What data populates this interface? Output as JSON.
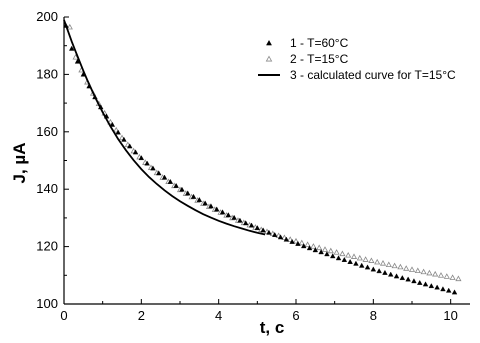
{
  "chart_data": {
    "type": "scatter",
    "title": "",
    "xlabel": "t, c",
    "ylabel": "J, µA",
    "xlim": [
      0,
      10.5
    ],
    "ylim": [
      100,
      200
    ],
    "x_ticks": [
      0,
      2,
      4,
      6,
      8,
      10
    ],
    "y_ticks": [
      100,
      120,
      140,
      160,
      180,
      200
    ],
    "grid": false,
    "legend_position": "top-right",
    "series": [
      {
        "name": "1 - T=60°C",
        "marker": "filled-triangle",
        "color": "#000000",
        "x": [
          0.05,
          0.2,
          0.35,
          0.5,
          0.65,
          0.8,
          0.95,
          1.1,
          1.25,
          1.4,
          1.55,
          1.7,
          1.85,
          2.0,
          2.15,
          2.3,
          2.45,
          2.6,
          2.75,
          2.9,
          3.05,
          3.2,
          3.35,
          3.5,
          3.65,
          3.8,
          3.95,
          4.1,
          4.25,
          4.4,
          4.55,
          4.7,
          4.85,
          5.0,
          5.15,
          5.3,
          5.45,
          5.6,
          5.75,
          5.9,
          6.05,
          6.2,
          6.35,
          6.5,
          6.65,
          6.8,
          6.95,
          7.1,
          7.25,
          7.4,
          7.55,
          7.7,
          7.85,
          8.0,
          8.15,
          8.3,
          8.45,
          8.6,
          8.75,
          8.9,
          9.05,
          9.2,
          9.35,
          9.5,
          9.65,
          9.8,
          9.95,
          10.1
        ],
        "y": [
          197.0,
          189.0,
          184.5,
          180.0,
          175.9,
          172.1,
          168.6,
          165.4,
          162.5,
          159.8,
          157.3,
          155.0,
          152.9,
          150.9,
          149.0,
          147.3,
          145.6,
          144.1,
          142.6,
          141.2,
          139.9,
          138.6,
          137.4,
          136.3,
          135.1,
          134.1,
          133.0,
          132.0,
          131.0,
          130.1,
          129.1,
          128.2,
          127.4,
          126.5,
          125.7,
          124.9,
          124.1,
          123.3,
          122.5,
          121.7,
          121.0,
          120.2,
          119.5,
          118.8,
          118.1,
          117.4,
          116.7,
          116.0,
          115.4,
          114.7,
          114.1,
          113.4,
          112.8,
          112.1,
          111.5,
          110.9,
          110.3,
          109.7,
          109.1,
          108.6,
          108.0,
          107.4,
          106.9,
          106.3,
          105.8,
          105.2,
          104.7,
          104.1
        ]
      },
      {
        "name": "2 - T=15°C",
        "marker": "open-triangle",
        "color": "#888888",
        "x": [
          0.15,
          0.3,
          0.45,
          0.6,
          0.75,
          0.9,
          1.05,
          1.2,
          1.35,
          1.5,
          1.65,
          1.8,
          1.95,
          2.1,
          2.25,
          2.4,
          2.55,
          2.7,
          2.85,
          3.0,
          3.15,
          3.3,
          3.45,
          3.6,
          3.75,
          3.9,
          4.05,
          4.2,
          4.35,
          4.5,
          4.65,
          4.8,
          4.95,
          5.1,
          5.25,
          5.4,
          5.55,
          5.7,
          5.85,
          6.0,
          6.15,
          6.3,
          6.45,
          6.6,
          6.75,
          6.9,
          7.05,
          7.2,
          7.35,
          7.5,
          7.65,
          7.8,
          7.95,
          8.1,
          8.25,
          8.4,
          8.55,
          8.7,
          8.85,
          9.0,
          9.15,
          9.3,
          9.45,
          9.6,
          9.75,
          9.9,
          10.05,
          10.2
        ],
        "y": [
          196.5,
          186.0,
          181.5,
          177.3,
          173.4,
          169.8,
          166.5,
          163.4,
          160.6,
          157.9,
          155.5,
          153.3,
          151.2,
          149.3,
          147.5,
          145.7,
          144.1,
          142.6,
          141.2,
          139.8,
          138.5,
          137.3,
          136.1,
          135.0,
          133.9,
          132.9,
          131.9,
          130.9,
          130.0,
          129.1,
          128.3,
          127.5,
          126.7,
          125.9,
          125.2,
          124.5,
          123.8,
          123.1,
          122.5,
          121.9,
          121.3,
          120.7,
          120.1,
          119.6,
          119.0,
          118.5,
          118.0,
          117.5,
          117.0,
          116.5,
          116.0,
          115.5,
          115.1,
          114.6,
          114.2,
          113.7,
          113.3,
          112.9,
          112.4,
          112.0,
          111.6,
          111.2,
          110.8,
          110.4,
          110.0,
          109.6,
          109.2,
          108.8
        ]
      },
      {
        "name": "3 - calculated curve for T=15°C",
        "marker": "line",
        "color": "#000000",
        "x": [
          0.0,
          0.1,
          0.2,
          0.3,
          0.4,
          0.5,
          0.6,
          0.8,
          1.0,
          1.2,
          1.4,
          1.6,
          1.8,
          2.0,
          2.2,
          2.4,
          2.6,
          2.8,
          3.0,
          3.2,
          3.4,
          3.6,
          3.8,
          4.0,
          4.2,
          4.4,
          4.6,
          4.8,
          5.0,
          5.2
        ],
        "y": [
          199.0,
          195.2,
          191.5,
          188.0,
          184.6,
          181.3,
          178.1,
          172.2,
          166.8,
          161.9,
          157.5,
          153.6,
          150.1,
          147.0,
          144.2,
          141.8,
          139.6,
          137.6,
          135.8,
          134.2,
          132.7,
          131.3,
          130.1,
          129.0,
          128.0,
          127.1,
          126.3,
          125.5,
          124.8,
          124.2
        ]
      }
    ]
  }
}
